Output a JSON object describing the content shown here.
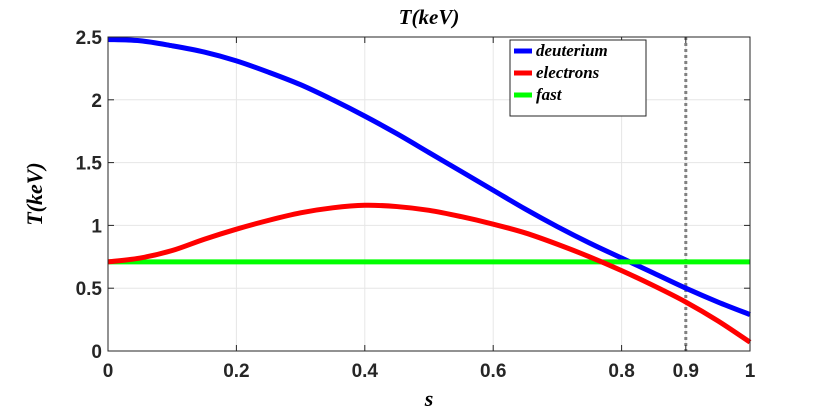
{
  "chart_data": {
    "type": "line",
    "title": "T(keV)",
    "xlabel": "s",
    "ylabel": "T(keV)",
    "xlim": [
      0,
      1
    ],
    "ylim": [
      0,
      2.5
    ],
    "xticks": [
      0,
      0.2,
      0.4,
      0.6,
      0.8,
      0.9,
      1
    ],
    "xtick_labels": [
      "0",
      "0.2",
      "0.4",
      "0.6",
      "0.8",
      "0.9",
      "1"
    ],
    "yticks": [
      0,
      0.5,
      1,
      1.5,
      2,
      2.5
    ],
    "ytick_labels": [
      "0",
      "0.5",
      "1",
      "1.5",
      "2",
      "2.5"
    ],
    "grid": true,
    "legend_position": "top-right",
    "vline": {
      "x": 0.9,
      "style": "dotted",
      "color": "#808080"
    },
    "series": [
      {
        "name": "deuterium",
        "color": "#0000ff",
        "x": [
          0,
          0.05,
          0.1,
          0.15,
          0.2,
          0.25,
          0.3,
          0.35,
          0.4,
          0.45,
          0.5,
          0.55,
          0.6,
          0.65,
          0.7,
          0.75,
          0.8,
          0.85,
          0.9,
          0.95,
          1.0
        ],
        "y": [
          2.48,
          2.47,
          2.43,
          2.38,
          2.31,
          2.22,
          2.12,
          2.0,
          1.87,
          1.73,
          1.58,
          1.43,
          1.28,
          1.13,
          0.99,
          0.86,
          0.74,
          0.62,
          0.5,
          0.39,
          0.29
        ]
      },
      {
        "name": "electrons",
        "color": "#ff0000",
        "x": [
          0,
          0.05,
          0.1,
          0.15,
          0.2,
          0.25,
          0.3,
          0.35,
          0.4,
          0.45,
          0.5,
          0.55,
          0.6,
          0.65,
          0.7,
          0.75,
          0.8,
          0.85,
          0.9,
          0.95,
          1.0
        ],
        "y": [
          0.71,
          0.74,
          0.8,
          0.89,
          0.97,
          1.04,
          1.1,
          1.14,
          1.16,
          1.15,
          1.12,
          1.07,
          1.01,
          0.94,
          0.85,
          0.75,
          0.64,
          0.52,
          0.39,
          0.24,
          0.07
        ]
      },
      {
        "name": "fast",
        "color": "#00ff00",
        "x": [
          0,
          1.0
        ],
        "y": [
          0.71,
          0.71
        ]
      }
    ]
  }
}
